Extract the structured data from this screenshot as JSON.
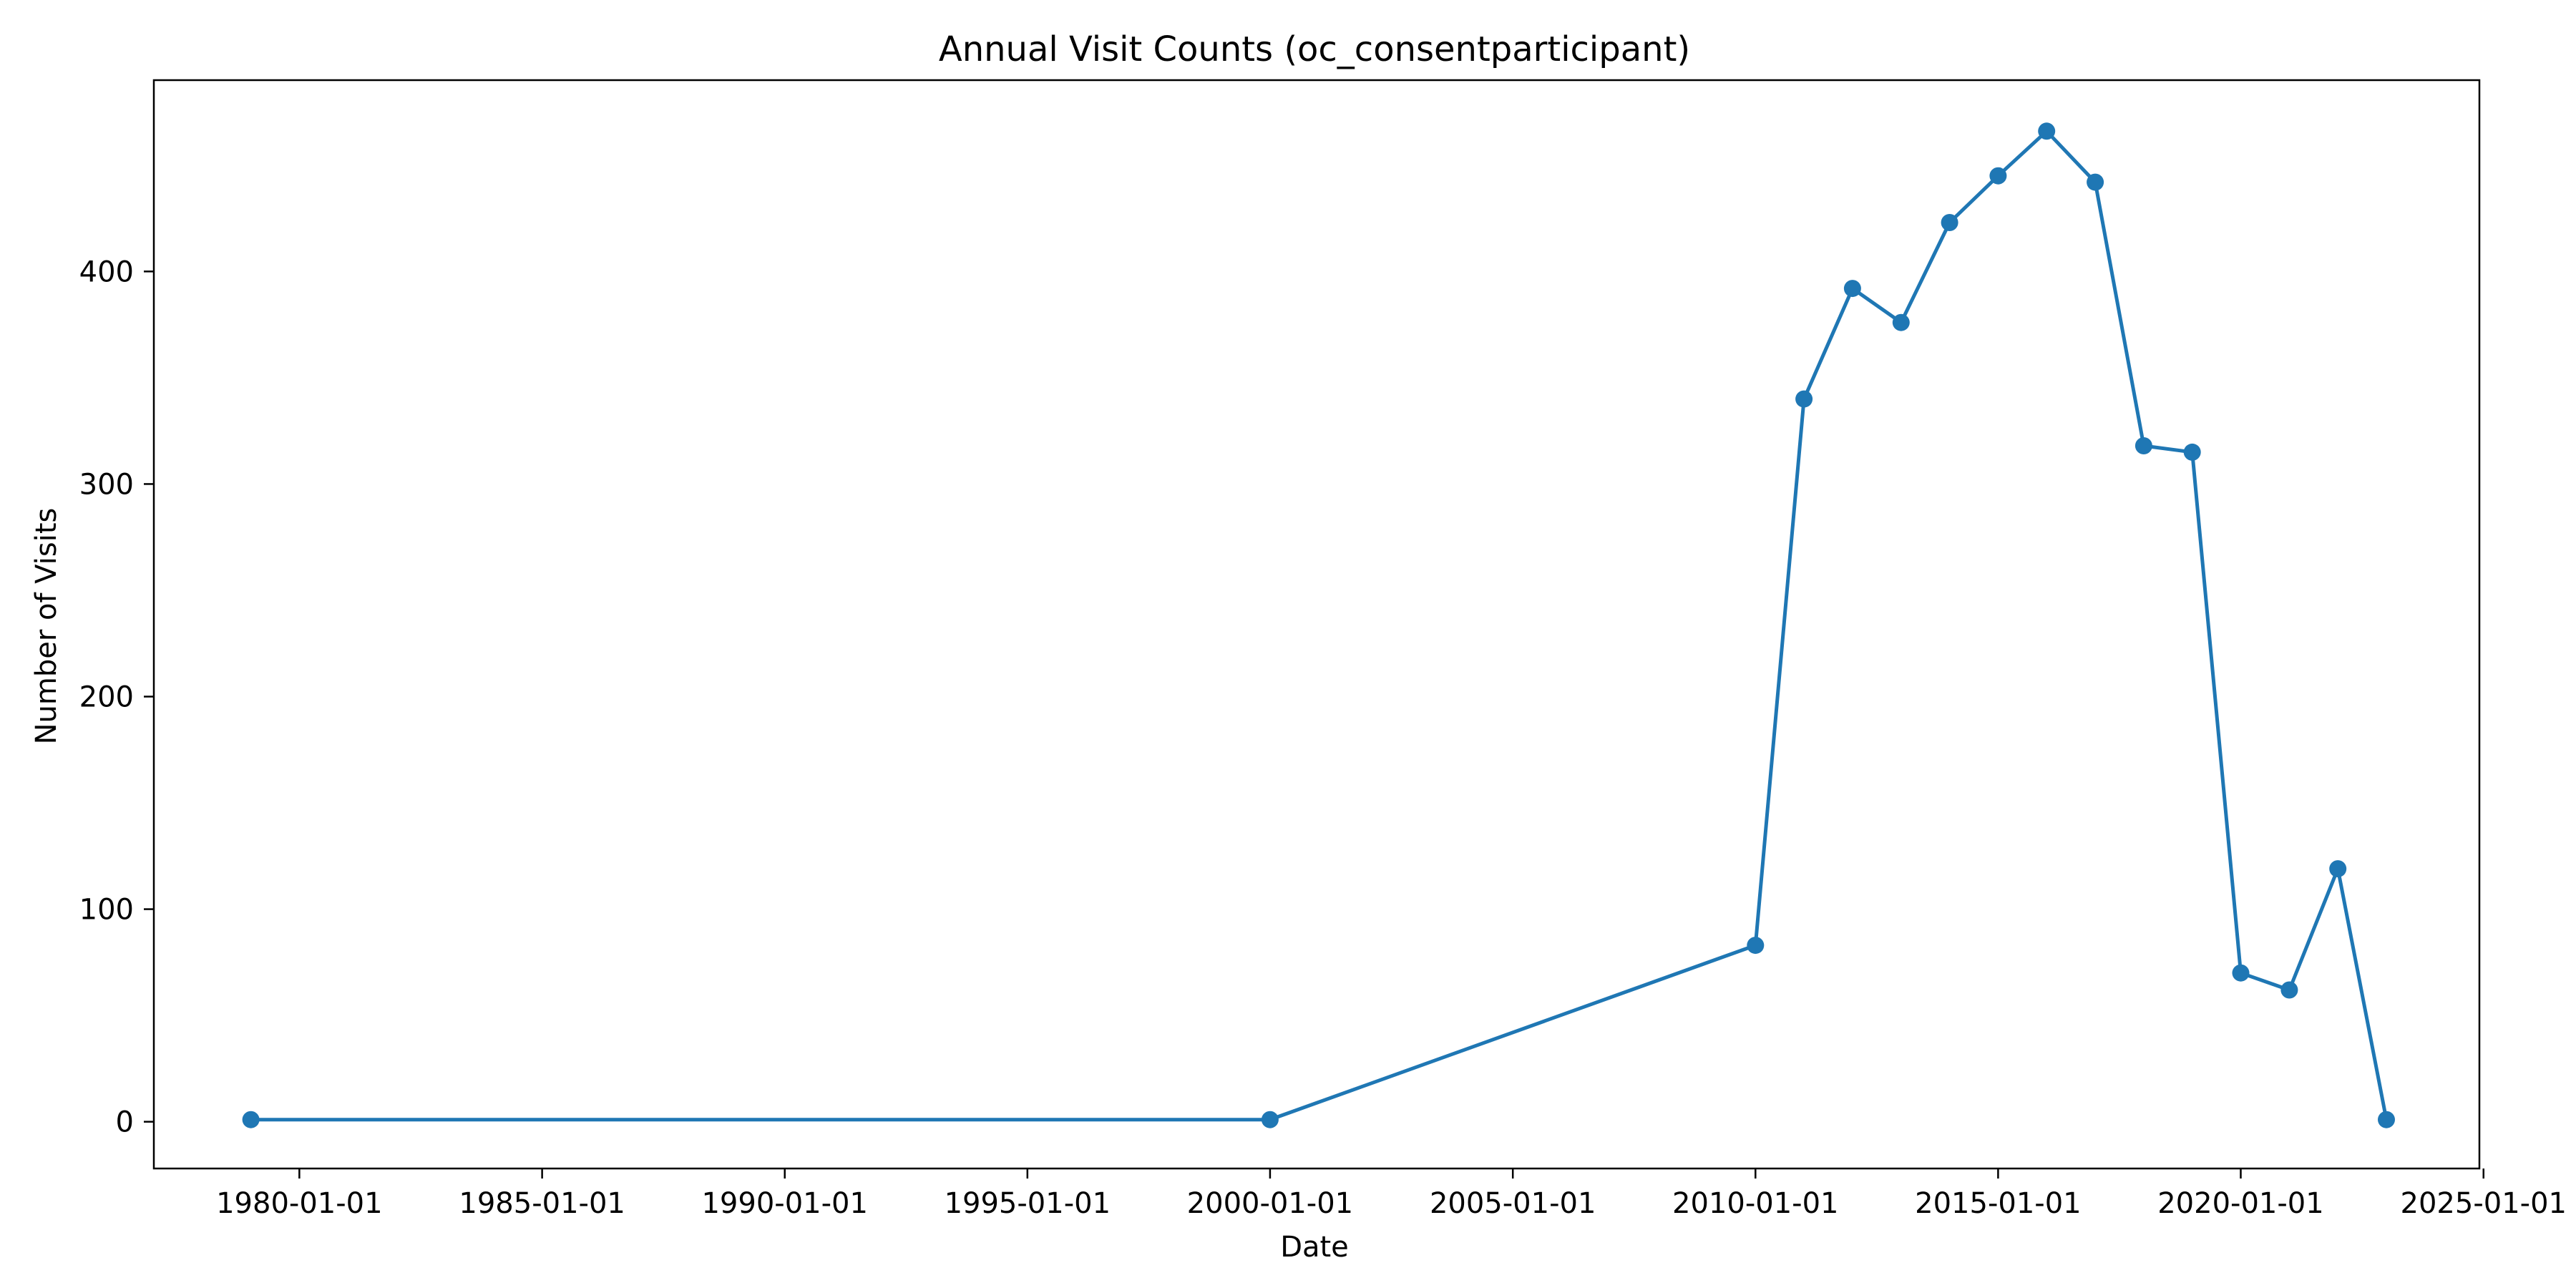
{
  "chart_data": {
    "type": "line",
    "title": "Annual Visit Counts (oc_consentparticipant)",
    "xlabel": "Date",
    "ylabel": "Number of Visits",
    "x_axis_type": "date",
    "xlim": [
      "1977-01-01",
      "2024-12-01"
    ],
    "ylim": [
      -22,
      490
    ],
    "x_ticks": [
      "1980-01-01",
      "1985-01-01",
      "1990-01-01",
      "1995-01-01",
      "2000-01-01",
      "2005-01-01",
      "2010-01-01",
      "2015-01-01",
      "2020-01-01",
      "2025-01-01"
    ],
    "y_ticks": [
      0,
      100,
      200,
      300,
      400
    ],
    "grid": false,
    "legend": "none",
    "color": "#1f77b4",
    "marker": "circle",
    "x": [
      "1979-01-01",
      "2000-01-01",
      "2010-01-01",
      "2011-01-01",
      "2012-01-01",
      "2013-01-01",
      "2014-01-01",
      "2015-01-01",
      "2016-01-01",
      "2017-01-01",
      "2018-01-01",
      "2019-01-01",
      "2020-01-01",
      "2021-01-01",
      "2022-01-01",
      "2023-01-01"
    ],
    "series": [
      {
        "values": [
          1,
          1,
          83,
          340,
          392,
          376,
          423,
          445,
          466,
          442,
          318,
          315,
          70,
          62,
          119,
          1
        ]
      }
    ]
  }
}
